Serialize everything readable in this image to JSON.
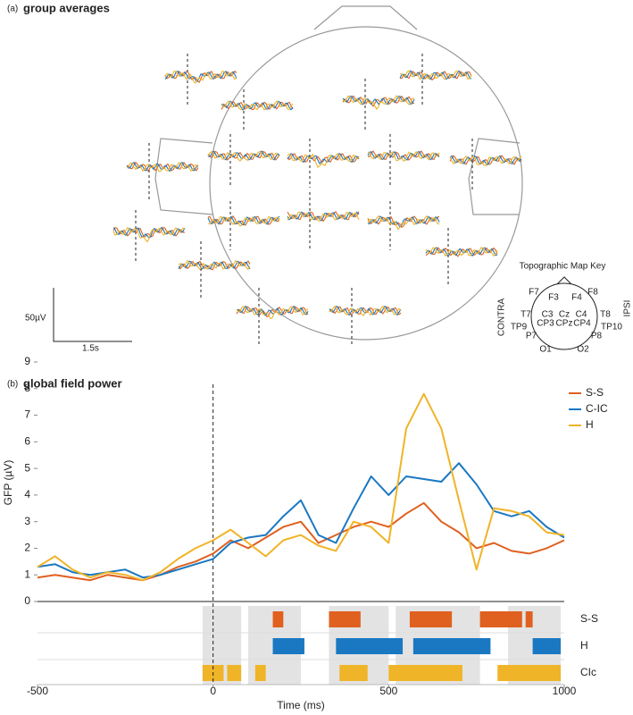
{
  "panel_a": {
    "label": "(a)",
    "title": "group averages",
    "scale_amplitude": "50µV",
    "scale_time": "1.5s",
    "map_key": {
      "title": "Topographic Map Key",
      "electrodes": [
        "F7",
        "F3",
        "F4",
        "F8",
        "T7",
        "C3",
        "Cz",
        "C4",
        "T8",
        "TP9",
        "CP3",
        "CPz",
        "CP4",
        "TP10",
        "P7",
        "P8",
        "O1",
        "O2"
      ],
      "contra": "CONTRA",
      "ipsi": "IPSI"
    }
  },
  "chart_data": {
    "type": "line",
    "label": "(b)",
    "title": "global field power",
    "y_label": "GFP (µV)",
    "x_label": "Time (ms)",
    "x": [
      -500,
      -450,
      -400,
      -350,
      -300,
      -250,
      -200,
      -150,
      -100,
      -50,
      0,
      50,
      100,
      150,
      200,
      250,
      300,
      350,
      400,
      450,
      500,
      550,
      600,
      650,
      700,
      750,
      800,
      850,
      900,
      950,
      1000
    ],
    "series": [
      {
        "name": "S-S",
        "color": "#e0601f",
        "values": [
          0.9,
          1.0,
          0.9,
          0.8,
          1.0,
          0.9,
          0.8,
          1.0,
          1.3,
          1.5,
          1.8,
          2.3,
          2.0,
          2.4,
          2.8,
          3.0,
          2.2,
          2.5,
          2.8,
          3.0,
          2.8,
          3.3,
          3.7,
          3.0,
          2.6,
          2.0,
          2.2,
          1.9,
          1.8,
          2.0,
          2.3
        ]
      },
      {
        "name": "C-IC",
        "color": "#1a78c2",
        "values": [
          1.3,
          1.4,
          1.1,
          1.0,
          1.1,
          1.2,
          0.9,
          1.0,
          1.2,
          1.4,
          1.6,
          2.2,
          2.4,
          2.5,
          3.2,
          3.8,
          2.5,
          2.2,
          3.5,
          4.7,
          4.0,
          4.7,
          4.6,
          4.5,
          5.2,
          4.4,
          3.4,
          3.2,
          3.4,
          2.8,
          2.4
        ]
      },
      {
        "name": "H",
        "color": "#f0b428",
        "values": [
          1.3,
          1.7,
          1.2,
          0.9,
          1.1,
          1.0,
          0.8,
          1.1,
          1.6,
          2.0,
          2.3,
          2.7,
          2.2,
          1.7,
          2.3,
          2.5,
          2.1,
          1.9,
          3.0,
          2.8,
          2.2,
          6.5,
          7.8,
          6.5,
          3.8,
          1.2,
          3.5,
          3.4,
          3.2,
          2.6,
          2.5
        ]
      }
    ],
    "xlim": [
      -500,
      1000
    ],
    "xticks": [
      -500,
      0,
      500,
      1000
    ],
    "ylim": [
      0,
      9
    ],
    "yticks": [
      0,
      1,
      2,
      3,
      4,
      5,
      6,
      7,
      8,
      9
    ],
    "marker_x": 0,
    "shaded_intervals": [
      [
        -30,
        80
      ],
      [
        100,
        250
      ],
      [
        330,
        500
      ],
      [
        520,
        760
      ],
      [
        840,
        990
      ]
    ],
    "significance": [
      {
        "name": "S-S",
        "color": "#e0601f",
        "intervals": [
          [
            170,
            200
          ],
          [
            330,
            420
          ],
          [
            560,
            680
          ],
          [
            760,
            880
          ],
          [
            890,
            910
          ]
        ]
      },
      {
        "name": "H",
        "color": "#1a78c2",
        "intervals": [
          [
            170,
            260
          ],
          [
            350,
            540
          ],
          [
            570,
            790
          ],
          [
            910,
            990
          ]
        ]
      },
      {
        "name": "CIc",
        "color": "#f0b428",
        "intervals": [
          [
            -30,
            30
          ],
          [
            40,
            80
          ],
          [
            120,
            150
          ],
          [
            360,
            440
          ],
          [
            500,
            710
          ],
          [
            810,
            990
          ]
        ]
      }
    ]
  }
}
